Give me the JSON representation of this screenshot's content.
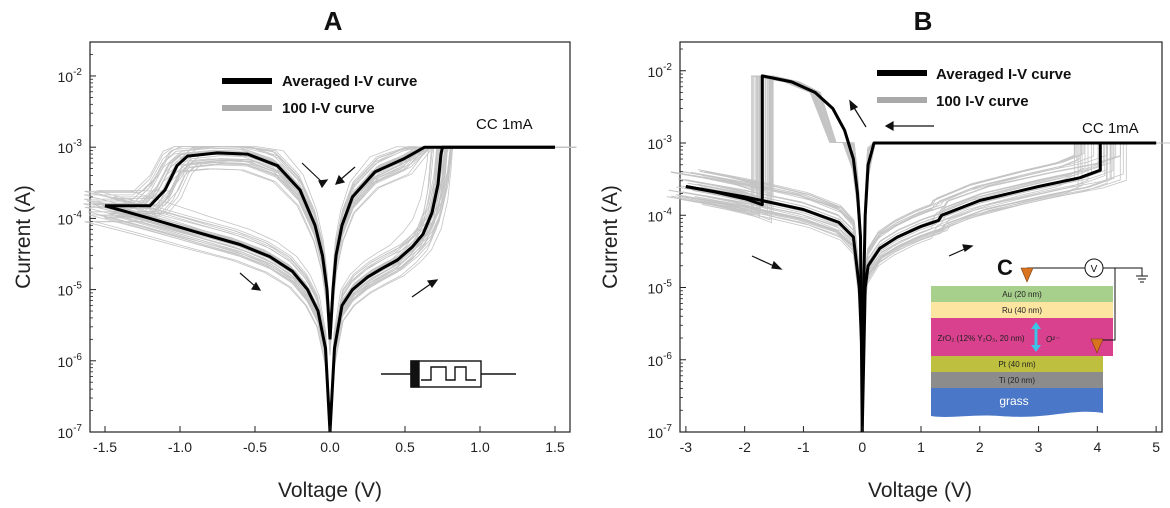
{
  "chart_data": [
    {
      "type": "line",
      "panel_label": "A",
      "xlabel": "Voltage (V)",
      "ylabel": "Current (A)",
      "xscale": "linear",
      "yscale": "log",
      "xlim": [
        -1.6,
        1.6
      ],
      "ylim": [
        1e-07,
        0.03
      ],
      "xticks": [
        "-1.5",
        "-1.0",
        "-0.5",
        "0.0",
        "0.5",
        "1.0",
        "1.5"
      ],
      "xtick_values": [
        -1.5,
        -1.0,
        -0.5,
        0.0,
        0.5,
        1.0,
        1.5
      ],
      "yticks": [
        {
          "base": "10",
          "exp": "-7",
          "value": 1e-07
        },
        {
          "base": "10",
          "exp": "-6",
          "value": 1e-06
        },
        {
          "base": "10",
          "exp": "-5",
          "value": 1e-05
        },
        {
          "base": "10",
          "exp": "-4",
          "value": 0.0001
        },
        {
          "base": "10",
          "exp": "-3",
          "value": 0.001
        },
        {
          "base": "10",
          "exp": "-2",
          "value": 0.01
        }
      ],
      "legend": [
        {
          "label": "Averaged I-V curve",
          "color": "#000000"
        },
        {
          "label": "100 I-V curve",
          "color": "#a9a9a9"
        }
      ],
      "annotation": "CC 1mA",
      "series": [
        {
          "name": "Averaged I-V curve",
          "segments": [
            [
              [
                -1.5,
                0.00015
              ],
              [
                -1.2,
                0.0001
              ],
              [
                -0.9,
                6.5e-05
              ],
              [
                -0.6,
                4.3e-05
              ],
              [
                -0.4,
                2.9e-05
              ],
              [
                -0.25,
                1.8e-05
              ],
              [
                -0.15,
                1e-05
              ],
              [
                -0.08,
                5e-06
              ],
              [
                -0.03,
                1.5e-06
              ],
              [
                0.0,
                1e-07
              ]
            ],
            [
              [
                0.0,
                1e-07
              ],
              [
                0.03,
                1.5e-06
              ],
              [
                0.08,
                6e-06
              ],
              [
                0.15,
                1e-05
              ],
              [
                0.25,
                1.5e-05
              ],
              [
                0.35,
                2e-05
              ],
              [
                0.45,
                2.6e-05
              ],
              [
                0.55,
                4e-05
              ],
              [
                0.62,
                6e-05
              ],
              [
                0.68,
                0.00012
              ],
              [
                0.72,
                0.0003
              ],
              [
                0.74,
                0.0008
              ],
              [
                0.75,
                0.001
              ],
              [
                1.5,
                0.001
              ]
            ],
            [
              [
                1.5,
                0.001
              ],
              [
                0.63,
                0.001
              ],
              [
                0.5,
                0.0007
              ],
              [
                0.3,
                0.00045
              ],
              [
                0.15,
                0.0002
              ],
              [
                0.08,
                8e-05
              ],
              [
                0.04,
                3e-05
              ],
              [
                0.02,
                1e-05
              ],
              [
                0.0,
                2e-06
              ]
            ],
            [
              [
                0.0,
                2e-06
              ],
              [
                -0.02,
                1e-05
              ],
              [
                -0.05,
                3e-05
              ],
              [
                -0.1,
                8e-05
              ],
              [
                -0.2,
                0.00025
              ],
              [
                -0.35,
                0.00055
              ],
              [
                -0.55,
                0.0008
              ],
              [
                -0.75,
                0.00083
              ],
              [
                -0.95,
                0.00075
              ],
              [
                -1.02,
                0.00055
              ],
              [
                -1.1,
                0.00025
              ],
              [
                -1.2,
                0.00015
              ],
              [
                -1.5,
                0.00015
              ]
            ]
          ]
        }
      ]
    },
    {
      "type": "line",
      "panel_label": "B",
      "xlabel": "Voltage (V)",
      "ylabel": "Current (A)",
      "xscale": "linear",
      "yscale": "log",
      "xlim": [
        -3.1,
        5.1
      ],
      "ylim": [
        1e-07,
        0.025
      ],
      "xticks": [
        "-3",
        "-2",
        "-1",
        "0",
        "1",
        "2",
        "3",
        "4",
        "5"
      ],
      "xtick_values": [
        -3,
        -2,
        -1,
        0,
        1,
        2,
        3,
        4,
        5
      ],
      "yticks": [
        {
          "base": "10",
          "exp": "-7",
          "value": 1e-07
        },
        {
          "base": "10",
          "exp": "-6",
          "value": 1e-06
        },
        {
          "base": "10",
          "exp": "-5",
          "value": 1e-05
        },
        {
          "base": "10",
          "exp": "-4",
          "value": 0.0001
        },
        {
          "base": "10",
          "exp": "-3",
          "value": 0.001
        },
        {
          "base": "10",
          "exp": "-2",
          "value": 0.01
        }
      ],
      "legend": [
        {
          "label": "Averaged I-V curve",
          "color": "#000000"
        },
        {
          "label": "100 I-V curve",
          "color": "#a9a9a9"
        }
      ],
      "annotation": "CC 1mA",
      "series": [
        {
          "name": "Averaged I-V curve",
          "segments": [
            [
              [
                -3.0,
                0.00025
              ],
              [
                -2.5,
                0.00021
              ],
              [
                -2.0,
                0.00017
              ],
              [
                -1.7,
                0.00014
              ],
              [
                -1.7,
                0.0085
              ],
              [
                -1.2,
                0.007
              ],
              [
                -0.8,
                0.005
              ],
              [
                -0.5,
                0.003
              ],
              [
                -0.3,
                0.0015
              ],
              [
                -0.15,
                0.0006
              ],
              [
                -0.08,
                0.0002
              ],
              [
                -0.03,
                5e-05
              ],
              [
                0.0,
                1e-07
              ]
            ],
            [
              [
                0.0,
                1e-07
              ],
              [
                0.05,
                1e-05
              ],
              [
                0.1,
                2e-05
              ],
              [
                0.3,
                3.5e-05
              ],
              [
                0.6,
                5e-05
              ],
              [
                1.0,
                7e-05
              ],
              [
                1.3,
                8.5e-05
              ],
              [
                1.35,
                0.0001
              ],
              [
                2.0,
                0.00016
              ],
              [
                3.0,
                0.00025
              ],
              [
                3.7,
                0.00033
              ],
              [
                4.05,
                0.00042
              ],
              [
                4.05,
                0.001
              ],
              [
                5.0,
                0.001
              ]
            ],
            [
              [
                5.0,
                0.001
              ],
              [
                0.2,
                0.001
              ],
              [
                0.1,
                0.0005
              ],
              [
                0.05,
                0.0001
              ],
              [
                0.0,
                1e-06
              ]
            ],
            [
              [
                0.0,
                1e-06
              ],
              [
                -0.05,
                1e-05
              ],
              [
                -0.15,
                5e-05
              ],
              [
                -0.4,
                8e-05
              ],
              [
                -1.0,
                0.00012
              ],
              [
                -2.0,
                0.00018
              ],
              [
                -3.0,
                0.00025
              ]
            ]
          ]
        }
      ]
    }
  ],
  "inset_A": {
    "description_icon": "resistor-switch-symbol"
  },
  "inset_C": {
    "label": "C",
    "voltmeter_symbol": "V",
    "layers": [
      {
        "name": "Au (20 nm)",
        "color": "#a8d08d"
      },
      {
        "name": "Ru (40 nm)",
        "color": "#fbe5a0"
      },
      {
        "name": "ZrO₂ (12% Y₂O₃, 20 nm)",
        "color": "#d9418e"
      },
      {
        "name": "Pt (40 nm)",
        "color": "#bfbf3f"
      },
      {
        "name": "Ti (20 nm)",
        "color": "#8c8c8c"
      },
      {
        "name": "grass",
        "color": "#4a77c7"
      }
    ],
    "ion_label": "O²⁻"
  }
}
